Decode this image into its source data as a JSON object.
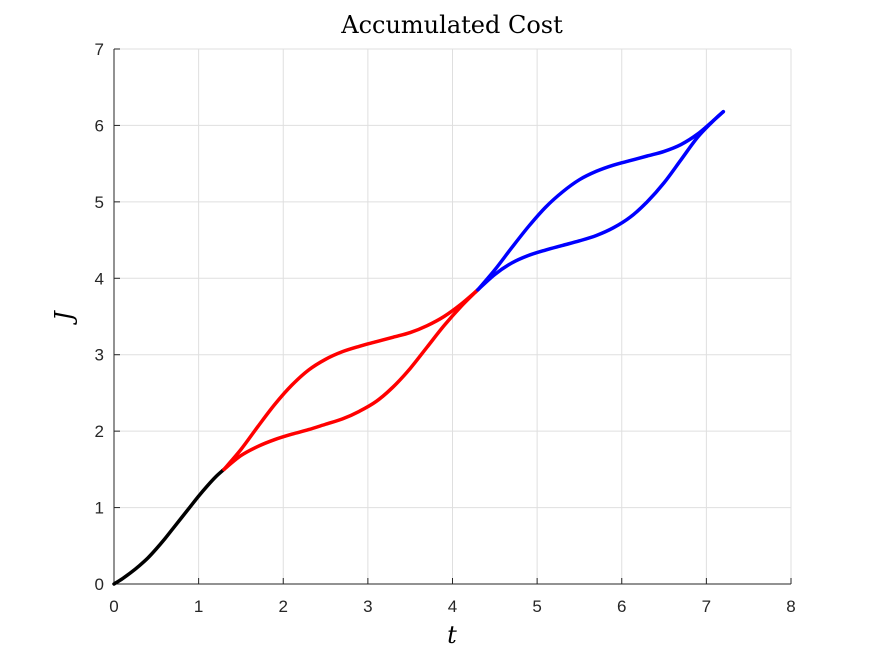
{
  "chart_data": {
    "type": "line",
    "title": "Accumulated Cost",
    "xlabel": "t",
    "ylabel": "J",
    "xlim": [
      0,
      8
    ],
    "ylim": [
      0,
      7
    ],
    "xticks": [
      0,
      1,
      2,
      3,
      4,
      5,
      6,
      7,
      8
    ],
    "yticks": [
      0,
      1,
      2,
      3,
      4,
      5,
      6,
      7
    ],
    "grid": true,
    "legend": "none",
    "series": [
      {
        "color": "#000000",
        "x": [
          0,
          0.1,
          0.2,
          0.3,
          0.4,
          0.5,
          0.6,
          0.7,
          0.8,
          0.9,
          1.0,
          1.1,
          1.2,
          1.3
        ],
        "y": [
          0,
          0.07,
          0.15,
          0.24,
          0.34,
          0.46,
          0.59,
          0.73,
          0.87,
          1.01,
          1.15,
          1.28,
          1.4,
          1.5
        ]
      },
      {
        "color": "#ff0000",
        "x": [
          1.3,
          1.5,
          1.7,
          1.9,
          2.1,
          2.3,
          2.5,
          2.7,
          2.9,
          3.1,
          3.3,
          3.5,
          3.7,
          3.9,
          4.1,
          4.3
        ],
        "y": [
          1.5,
          1.76,
          2.06,
          2.35,
          2.6,
          2.8,
          2.94,
          3.04,
          3.11,
          3.17,
          3.23,
          3.29,
          3.38,
          3.5,
          3.66,
          3.85
        ]
      },
      {
        "color": "#ff0000",
        "x": [
          1.3,
          1.5,
          1.7,
          1.9,
          2.1,
          2.3,
          2.5,
          2.7,
          2.9,
          3.1,
          3.3,
          3.5,
          3.7,
          3.9,
          4.1,
          4.3
        ],
        "y": [
          1.5,
          1.68,
          1.8,
          1.89,
          1.96,
          2.02,
          2.09,
          2.16,
          2.26,
          2.39,
          2.58,
          2.82,
          3.1,
          3.38,
          3.63,
          3.85
        ]
      },
      {
        "color": "#0000ff",
        "x": [
          4.3,
          4.5,
          4.7,
          4.9,
          5.1,
          5.3,
          5.5,
          5.7,
          5.9,
          6.1,
          6.3,
          6.5,
          6.7,
          6.9,
          7.1,
          7.2
        ],
        "y": [
          3.85,
          4.11,
          4.4,
          4.68,
          4.93,
          5.13,
          5.29,
          5.4,
          5.48,
          5.54,
          5.6,
          5.66,
          5.75,
          5.89,
          6.08,
          6.18
        ]
      },
      {
        "color": "#0000ff",
        "x": [
          4.3,
          4.5,
          4.7,
          4.9,
          5.1,
          5.3,
          5.5,
          5.7,
          5.9,
          6.1,
          6.3,
          6.5,
          6.7,
          6.9,
          7.1,
          7.2
        ],
        "y": [
          3.85,
          4.05,
          4.2,
          4.3,
          4.37,
          4.43,
          4.49,
          4.56,
          4.66,
          4.8,
          5.0,
          5.25,
          5.55,
          5.85,
          6.08,
          6.18
        ]
      }
    ]
  }
}
